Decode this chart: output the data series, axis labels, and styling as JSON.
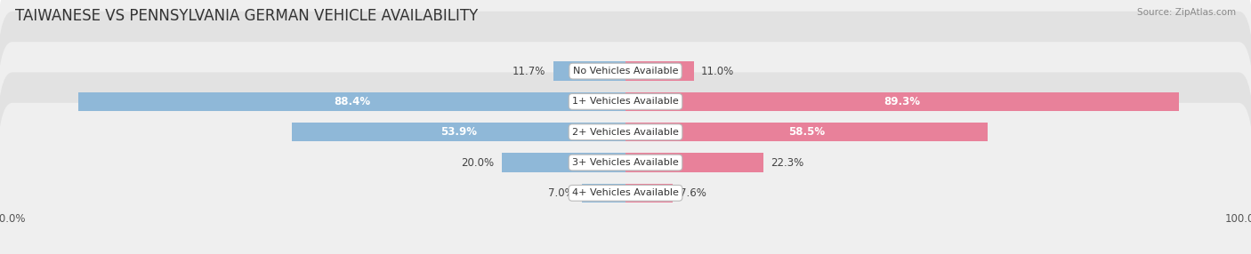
{
  "title": "TAIWANESE VS PENNSYLVANIA GERMAN VEHICLE AVAILABILITY",
  "source": "Source: ZipAtlas.com",
  "categories": [
    "No Vehicles Available",
    "1+ Vehicles Available",
    "2+ Vehicles Available",
    "3+ Vehicles Available",
    "4+ Vehicles Available"
  ],
  "taiwanese_values": [
    11.7,
    88.4,
    53.9,
    20.0,
    7.0
  ],
  "pennsylvania_values": [
    11.0,
    89.3,
    58.5,
    22.3,
    7.6
  ],
  "taiwanese_color": "#8fb8d8",
  "pennsylvania_color": "#e8819a",
  "row_bg_even": "#efefef",
  "row_bg_odd": "#e2e2e2",
  "max_value": 100.0,
  "bar_height": 0.62,
  "title_fontsize": 12,
  "label_fontsize": 8.5,
  "tick_fontsize": 8.5,
  "legend_fontsize": 9
}
